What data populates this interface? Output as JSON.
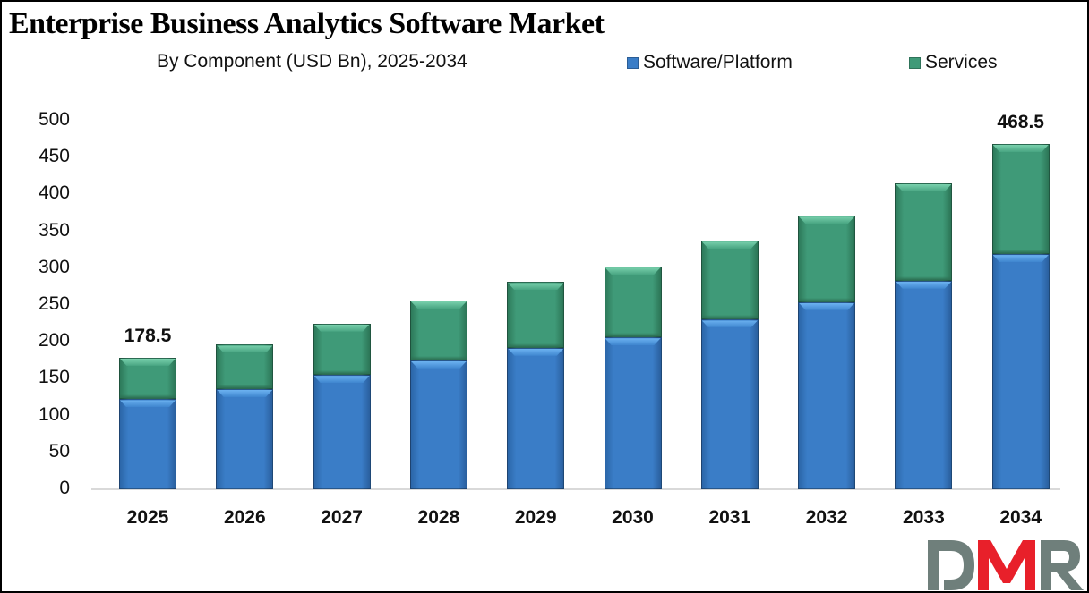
{
  "header": {
    "title": "Enterprise Business Analytics Software Market",
    "subtitle": "By Component (USD Bn), 2025-2034"
  },
  "legend": [
    {
      "label": "Software/Platform",
      "color": "#3a7dc7"
    },
    {
      "label": "Services",
      "color": "#3f9a78"
    }
  ],
  "yaxis": {
    "ticks": [
      "0",
      "50",
      "100",
      "150",
      "200",
      "250",
      "300",
      "350",
      "400",
      "450",
      "500"
    ]
  },
  "xaxis": {
    "ticks": [
      "2025",
      "2026",
      "2027",
      "2028",
      "2029",
      "2030",
      "2031",
      "2032",
      "2033",
      "2034"
    ]
  },
  "data_labels": {
    "first": "178.5",
    "last": "468.5"
  },
  "logo": {
    "text": "DMR",
    "colors": {
      "d": "#6f7f7b",
      "m": "#e8202a",
      "r": "#6f7f7b"
    }
  },
  "chart_data": {
    "type": "bar",
    "stacked": true,
    "title": "Enterprise Business Analytics Software Market",
    "subtitle": "By Component (USD Bn), 2025-2034",
    "xlabel": "",
    "ylabel": "",
    "ylim": [
      0,
      500
    ],
    "yticks": [
      0,
      50,
      100,
      150,
      200,
      250,
      300,
      350,
      400,
      450,
      500
    ],
    "grid": false,
    "legend_position": "top-right",
    "categories": [
      "2025",
      "2026",
      "2027",
      "2028",
      "2029",
      "2030",
      "2031",
      "2032",
      "2033",
      "2034"
    ],
    "series": [
      {
        "name": "Software/Platform",
        "color": "#3a7dc7",
        "values": [
          122,
          136,
          155,
          175,
          192,
          206,
          230,
          254,
          283,
          319
        ]
      },
      {
        "name": "Services",
        "color": "#3f9a78",
        "values": [
          56.5,
          60,
          70,
          81,
          89,
          96,
          107,
          117,
          132,
          149.5
        ]
      }
    ],
    "totals": [
      178.5,
      196,
      225,
      256,
      281,
      302,
      337,
      371,
      415,
      468.5
    ],
    "annotations": [
      {
        "category": "2025",
        "text": "178.5"
      },
      {
        "category": "2034",
        "text": "468.5"
      }
    ]
  }
}
